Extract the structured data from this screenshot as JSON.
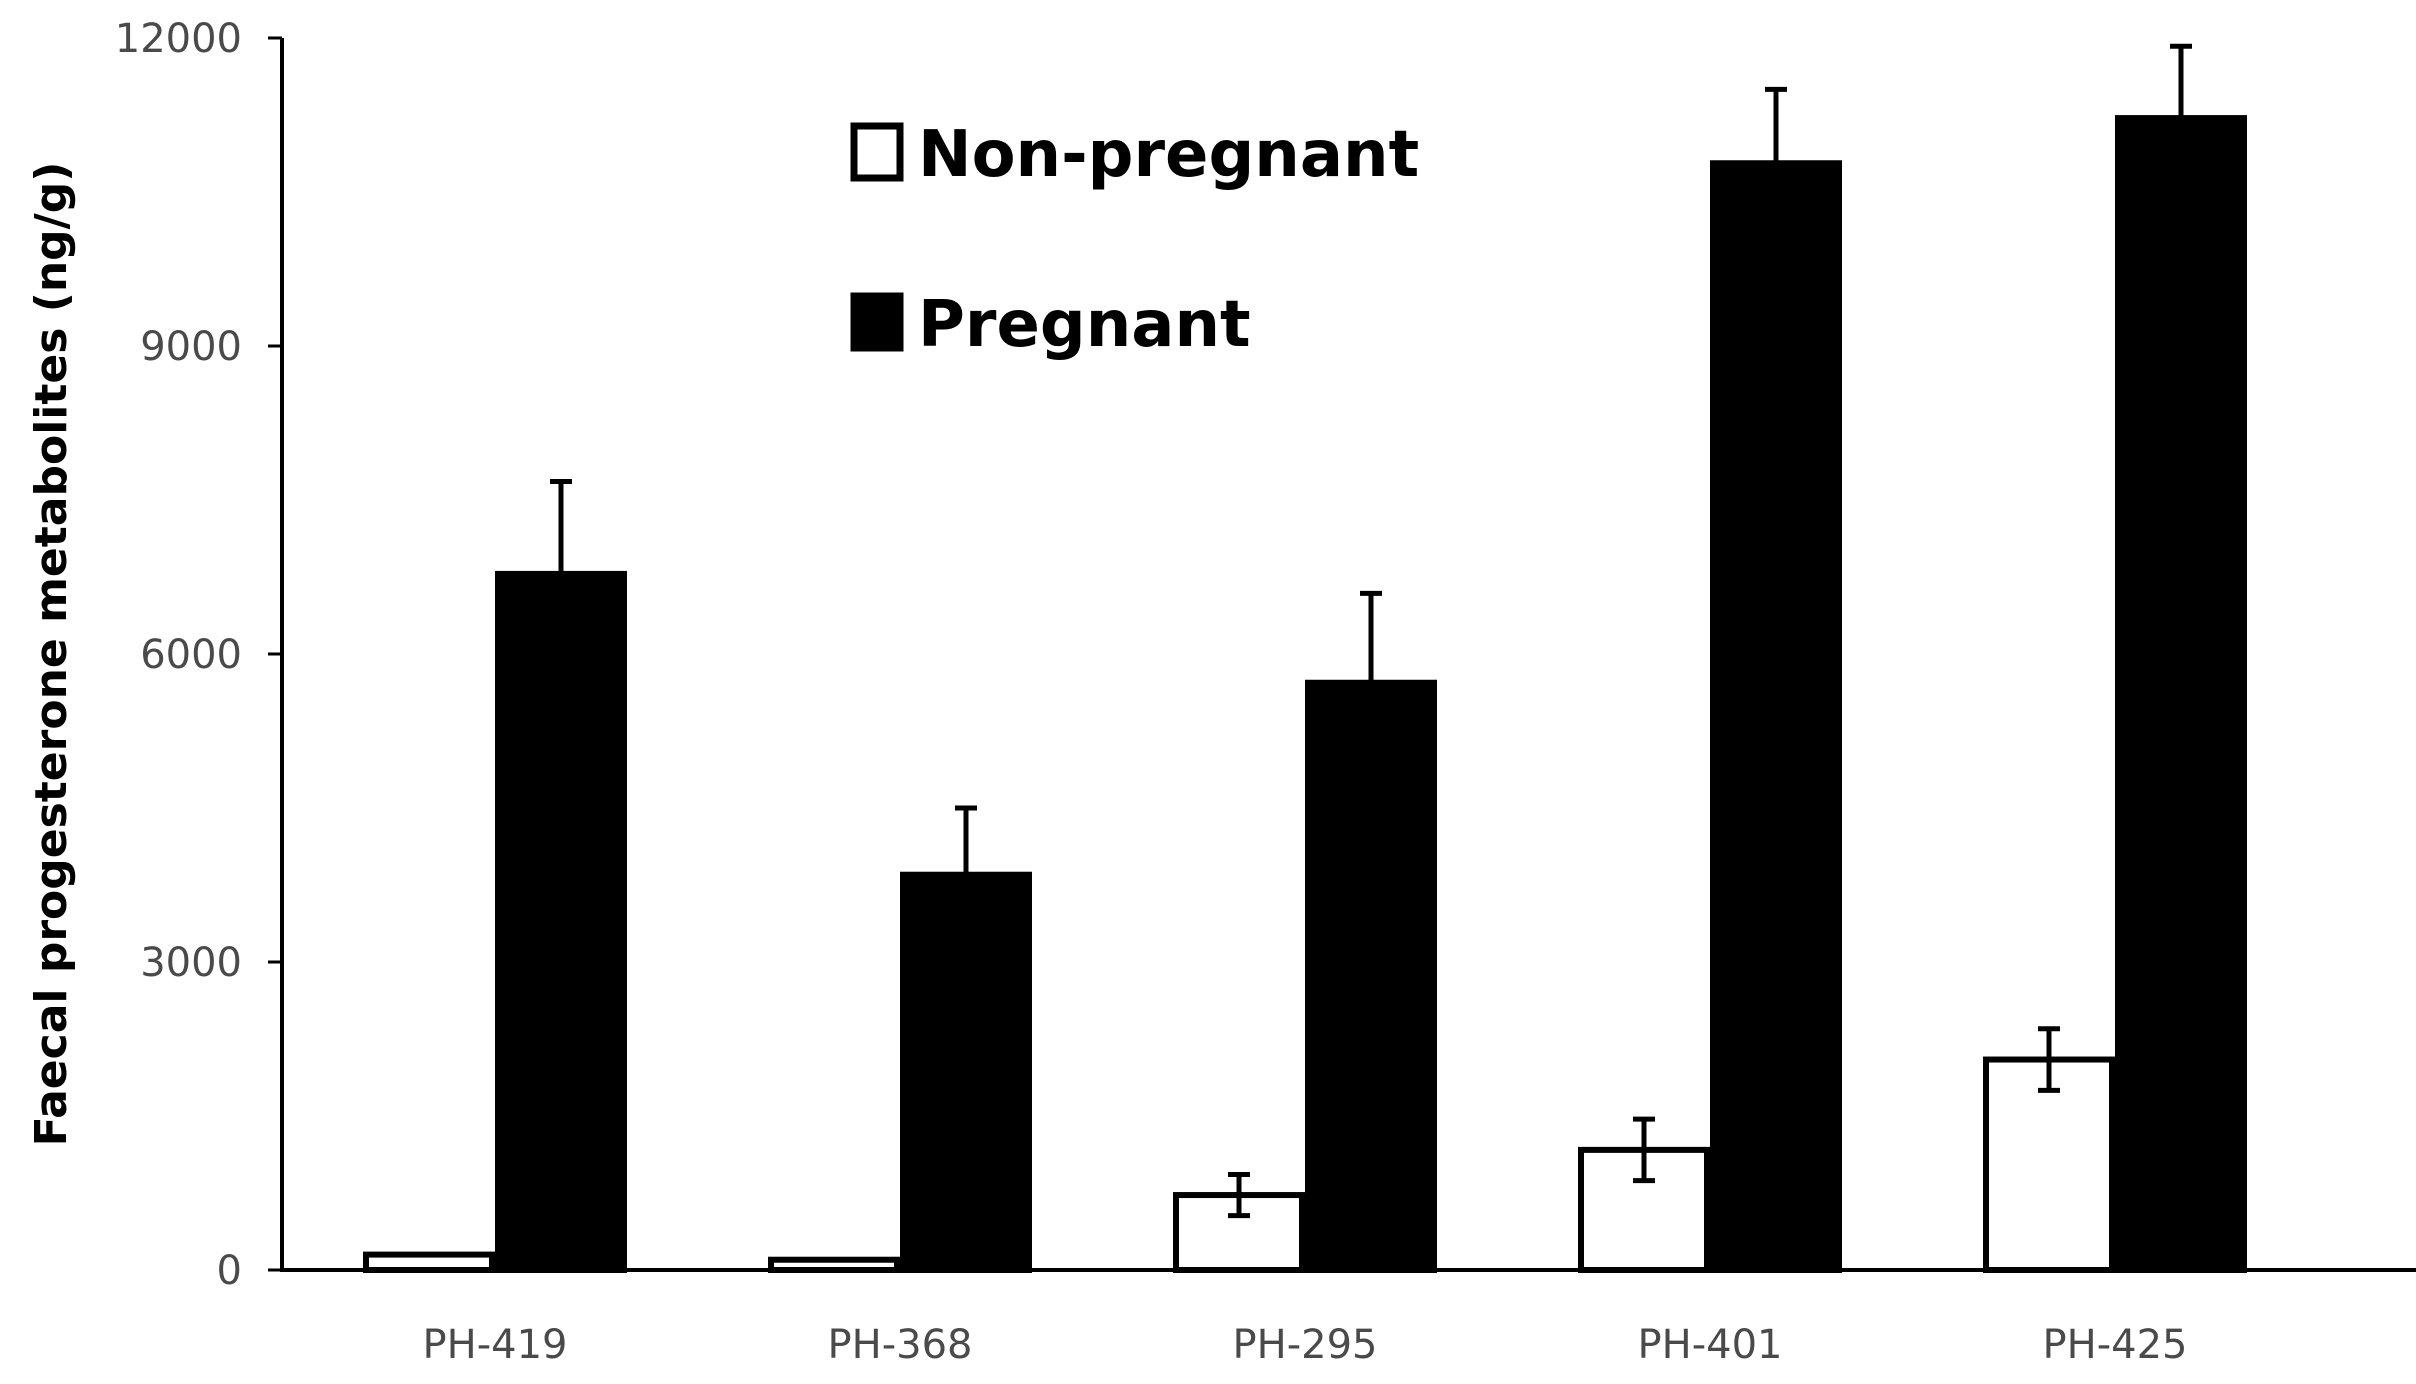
{
  "chart_data": {
    "type": "bar",
    "title": "",
    "xlabel": "",
    "ylabel": "Faecal progesterone metabolites (ng/g)",
    "ylim": [
      0,
      12000
    ],
    "yticks": [
      0,
      3000,
      6000,
      9000,
      12000
    ],
    "ytick_labels": [
      "0",
      "3000",
      "6000",
      "9000",
      "12000"
    ],
    "categories": [
      "PH-419",
      "PH-368",
      "PH-295",
      "PH-401",
      "PH-425"
    ],
    "legend_position": "top-center",
    "series": [
      {
        "name": "Non-pregnant",
        "fill": "#ffffff",
        "stroke": "#000000",
        "values": [
          150,
          100,
          730,
          1170,
          2050
        ],
        "errors": [
          0,
          0,
          200,
          300,
          300
        ]
      },
      {
        "name": "Pregnant",
        "fill": "#000000",
        "stroke": "#000000",
        "values": [
          6780,
          3850,
          5720,
          10780,
          11220
        ],
        "errors": [
          900,
          650,
          870,
          720,
          700
        ]
      }
    ]
  }
}
